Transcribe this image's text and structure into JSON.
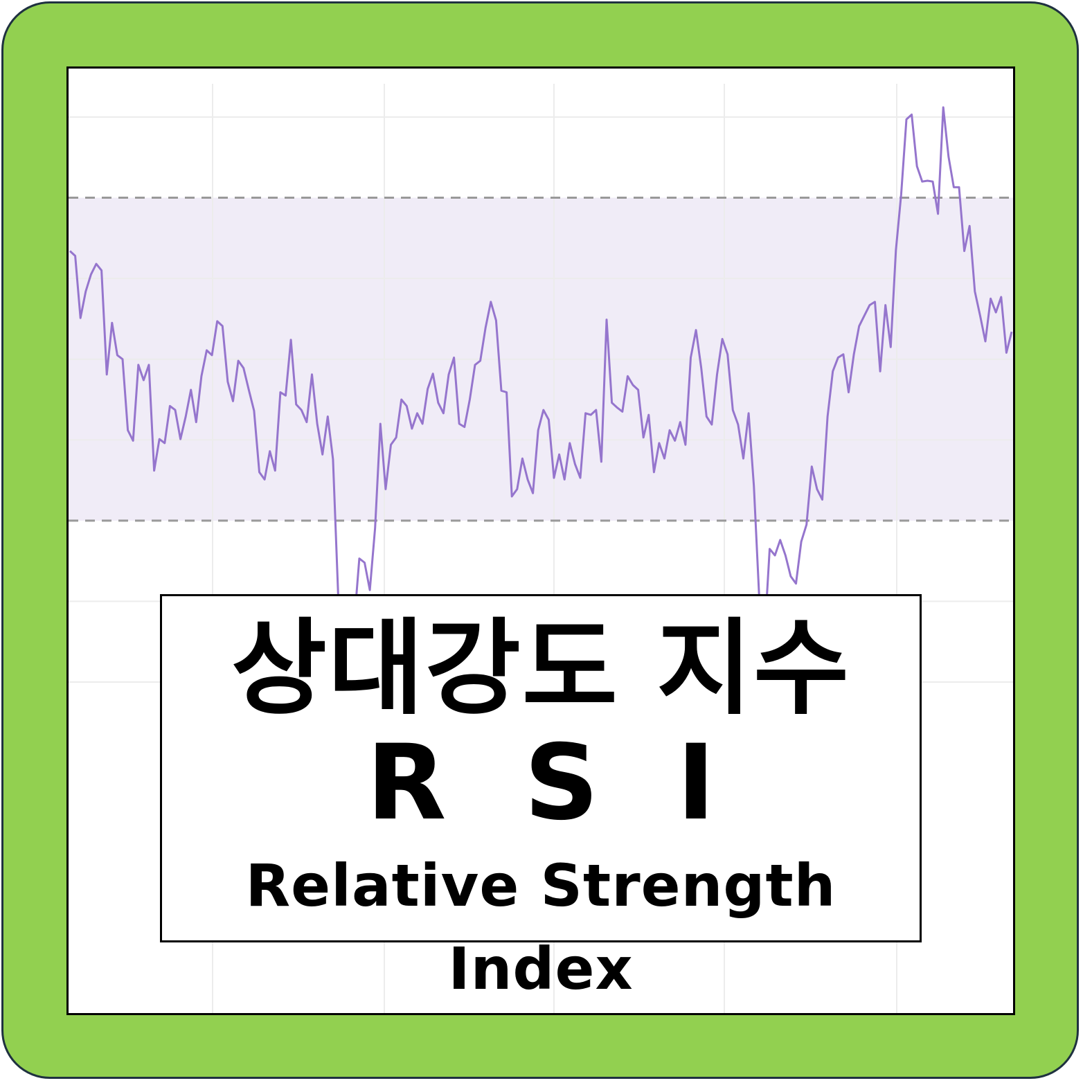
{
  "colors": {
    "background": "#92d050",
    "border": "#1f3140",
    "line": "#9575cd",
    "band": "#f0ecf7",
    "dashed": "#999999",
    "grid": "#ececec"
  },
  "title": {
    "korean": "상대강도 지수",
    "abbr": "R S I",
    "english": "Relative Strength Index"
  },
  "chart_data": {
    "type": "line",
    "title": "",
    "xlabel": "",
    "ylabel": "",
    "ylim": [
      -31,
      86
    ],
    "grid": true,
    "overbought": 70,
    "oversold": 30,
    "gridlines": [
      10,
      20,
      30,
      40,
      50,
      60,
      70,
      80
    ],
    "values": [
      63.4,
      62.8,
      55.1,
      58.4,
      60.5,
      61.8,
      61,
      48.1,
      54.5,
      50.5,
      50,
      41.2,
      39.9,
      49.3,
      47.4,
      49.3,
      36.2,
      40.1,
      39.6,
      44.2,
      43.7,
      40.1,
      42.9,
      46.2,
      42.2,
      47.9,
      51.1,
      50.5,
      54.7,
      54.1,
      47.2,
      44.8,
      49.8,
      48.9,
      46.2,
      43.6,
      36,
      35.1,
      38.6,
      36.2,
      45.9,
      45.5,
      52.4,
      44.4,
      43.7,
      42.2,
      48.1,
      42,
      38.2,
      42.9,
      37.6,
      20.5,
      11.9,
      8.5,
      17.1,
      25.3,
      24.8,
      21.4,
      29.1,
      42,
      33.9,
      39.4,
      40.3,
      45,
      44.2,
      41.4,
      43.3,
      42,
      46.3,
      48.2,
      44.6,
      43.3,
      48.1,
      50.2,
      42,
      41.6,
      45,
      49.3,
      49.8,
      53.9,
      57.1,
      54.8,
      46.1,
      45.9,
      33,
      33.9,
      37.7,
      35.1,
      33.4,
      41.2,
      43.7,
      42.5,
      35.3,
      38.2,
      35.1,
      39.6,
      37,
      35.3,
      43.3,
      43.1,
      43.7,
      37.3,
      54.9,
      44.6,
      44,
      43.5,
      47.9,
      46.8,
      46.2,
      40.3,
      43.1,
      36,
      39.6,
      37.7,
      41.2,
      39.9,
      42.2,
      39.4,
      50.2,
      53.6,
      48.9,
      42.9,
      41.9,
      48.1,
      52.5,
      50.6,
      43.7,
      41.9,
      37.7,
      43.3,
      34.3,
      20.7,
      15.4,
      26.5,
      25.7,
      27.6,
      25.7,
      23.1,
      22.2,
      27.4,
      29.5,
      36.7,
      33.9,
      32.6,
      42.9,
      48.5,
      50.2,
      50.6,
      45.9,
      50.6,
      54.1,
      55.4,
      56.7,
      57.1,
      48.5,
      56.7,
      51.5,
      63.5,
      70.4,
      79.7,
      80.3,
      73.9,
      72,
      72.1,
      72,
      68,
      81.2,
      75.1,
      71.3,
      71.3,
      63.4,
      66.5,
      58.4,
      55.4,
      52.2,
      57.5,
      55.8,
      57.7,
      50.8,
      53.4
    ]
  }
}
